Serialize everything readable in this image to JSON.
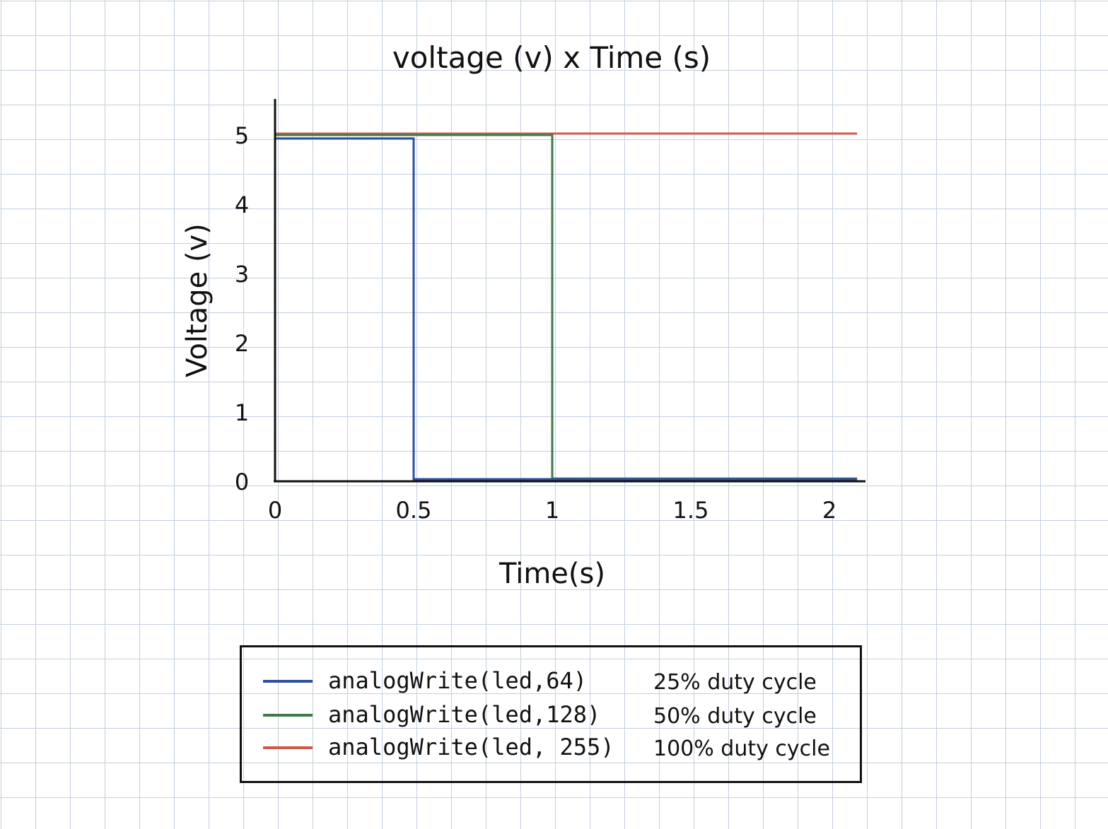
{
  "chart_data": {
    "type": "line",
    "title": "voltage (v)  x  Time (s)",
    "xlabel": "Time(s)",
    "ylabel": "Voltage (v)",
    "xlim": [
      0,
      2.1
    ],
    "ylim": [
      0,
      5.5
    ],
    "x_ticks": [
      "0",
      "0.5",
      "1",
      "1.5",
      "2"
    ],
    "y_ticks": [
      "0",
      "1",
      "2",
      "3",
      "4",
      "5"
    ],
    "grid": true,
    "legend_position": "bottom",
    "series": [
      {
        "name": "analogWrite(led,64)",
        "note": "25% duty cycle",
        "color": "#2f4fa0",
        "x": [
          0,
          0.5,
          0.5,
          2.1
        ],
        "y": [
          4.95,
          4.95,
          0.03,
          0.03
        ]
      },
      {
        "name": "analogWrite(led,128)",
        "note": "50% duty cycle",
        "color": "#3f7a48",
        "x": [
          0,
          1,
          1,
          2.1
        ],
        "y": [
          5,
          5,
          0.04,
          0.04
        ]
      },
      {
        "name": "analogWrite(led, 255)",
        "note": "100% duty cycle",
        "color": "#cf5a4a",
        "x": [
          0,
          2.1
        ],
        "y": [
          5.02,
          5.02
        ]
      }
    ]
  }
}
